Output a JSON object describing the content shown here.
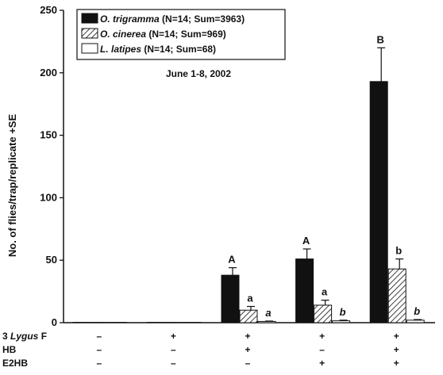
{
  "chart_data": {
    "type": "bar",
    "subtitle": "June 1-8, 2002",
    "ylabel": "No. of flies/trap/replicate +SE",
    "ylim": [
      0,
      250
    ],
    "yticks": [
      0,
      50,
      100,
      150,
      200,
      250
    ],
    "grid": false,
    "legend_position": "top-left",
    "groups": 5,
    "series": [
      {
        "name": "O. trigramma",
        "name_italic": "O. trigramma",
        "name_rest": " (N=14; Sum=3963)",
        "fill": "solid-black",
        "values": [
          0,
          0,
          38,
          51,
          193
        ],
        "errors": [
          0,
          0,
          6,
          8,
          27
        ],
        "labels": [
          "",
          "",
          "A",
          "A",
          "B"
        ]
      },
      {
        "name": "O. cinerea",
        "name_italic": "O. cinerea",
        "name_rest": " (N=14; Sum=969)",
        "fill": "hatched",
        "values": [
          0,
          0,
          10,
          14,
          43
        ],
        "errors": [
          0,
          0,
          3,
          4,
          8
        ],
        "labels": [
          "",
          "",
          "a",
          "a",
          "b"
        ]
      },
      {
        "name": "L. latipes",
        "name_italic": "L. latipes",
        "name_rest": " (N=14; Sum=68)",
        "fill": "white",
        "values": [
          0,
          0,
          1,
          1.5,
          2
        ],
        "errors": [
          0,
          0,
          0.3,
          0.5,
          0.5
        ],
        "labels": [
          "",
          "",
          "a",
          "b",
          "b"
        ],
        "labels_italic": true
      }
    ],
    "treatments": [
      {
        "prefix": "3 ",
        "italic": "Lygus",
        "suffix": " F",
        "values": [
          "–",
          "+",
          "+",
          "+",
          "+"
        ]
      },
      {
        "prefix": "HB",
        "italic": "",
        "suffix": "",
        "values": [
          "–",
          "–",
          "+",
          "–",
          "+"
        ]
      },
      {
        "prefix": "E2HB",
        "italic": "",
        "suffix": "",
        "values": [
          "–",
          "–",
          "–",
          "+",
          "+"
        ]
      }
    ]
  }
}
